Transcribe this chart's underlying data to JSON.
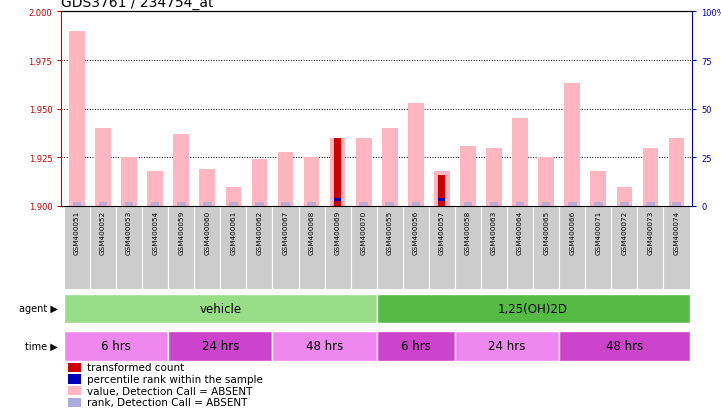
{
  "title": "GDS3761 / 234754_at",
  "samples": [
    "GSM400051",
    "GSM400052",
    "GSM400053",
    "GSM400054",
    "GSM400059",
    "GSM400060",
    "GSM400061",
    "GSM400062",
    "GSM400067",
    "GSM400068",
    "GSM400069",
    "GSM400070",
    "GSM400055",
    "GSM400056",
    "GSM400057",
    "GSM400058",
    "GSM400063",
    "GSM400064",
    "GSM400065",
    "GSM400066",
    "GSM400071",
    "GSM400072",
    "GSM400073",
    "GSM400074"
  ],
  "pink_bars": [
    1.99,
    1.94,
    1.925,
    1.918,
    1.937,
    1.919,
    1.91,
    1.924,
    1.928,
    1.925,
    1.935,
    1.935,
    1.94,
    1.953,
    1.918,
    1.931,
    1.93,
    1.945,
    1.925,
    1.963,
    1.918,
    1.91,
    1.93,
    1.935
  ],
  "red_bars": [
    0,
    0,
    0,
    0,
    0,
    0,
    0,
    0,
    0,
    0,
    1.935,
    0,
    0,
    0,
    1.916,
    0,
    0,
    0,
    0,
    0,
    0,
    0,
    0,
    0
  ],
  "blue_bars": [
    0,
    0,
    0,
    0,
    0,
    0,
    0,
    0,
    0,
    0,
    1.9025,
    0,
    0,
    0,
    1.9025,
    0,
    0,
    0,
    0,
    0,
    0,
    0,
    0,
    0
  ],
  "ymin": 1.9,
  "ymax": 2.0,
  "yright_min": 0,
  "yright_max": 100,
  "yticks_left": [
    1.9,
    1.925,
    1.95,
    1.975,
    2.0
  ],
  "yticks_right": [
    0,
    25,
    50,
    75,
    100
  ],
  "agent_groups": [
    {
      "label": "vehicle",
      "start": 0,
      "end": 12,
      "color": "#99DD88"
    },
    {
      "label": "1,25(OH)2D",
      "start": 12,
      "end": 24,
      "color": "#55BB44"
    }
  ],
  "time_groups": [
    {
      "label": "6 hrs",
      "start": 0,
      "end": 4,
      "color": "#EE88EE"
    },
    {
      "label": "24 hrs",
      "start": 4,
      "end": 8,
      "color": "#CC44CC"
    },
    {
      "label": "48 hrs",
      "start": 8,
      "end": 12,
      "color": "#EE88EE"
    },
    {
      "label": "6 hrs",
      "start": 12,
      "end": 15,
      "color": "#CC44CC"
    },
    {
      "label": "24 hrs",
      "start": 15,
      "end": 19,
      "color": "#EE88EE"
    },
    {
      "label": "48 hrs",
      "start": 19,
      "end": 24,
      "color": "#CC44CC"
    }
  ],
  "pink_color": "#FFB6C1",
  "light_blue_color": "#AAAADD",
  "red_color": "#CC0000",
  "blue_color": "#0000BB",
  "left_axis_color": "#CC0000",
  "right_axis_color": "#0000BB",
  "title_fontsize": 10,
  "tick_fontsize": 6,
  "bar_width": 0.6,
  "label_box_color": "#CCCCCC",
  "white": "#FFFFFF"
}
